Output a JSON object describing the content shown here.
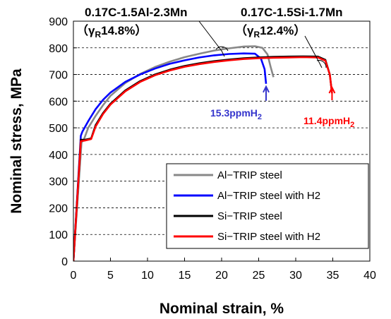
{
  "chart_data": {
    "type": "line",
    "xlabel": "Nominal strain, %",
    "ylabel": "Nominal stress, MPa",
    "xlim": [
      0,
      40
    ],
    "ylim": [
      0,
      900
    ],
    "xticks": [
      0,
      5,
      10,
      15,
      20,
      25,
      30,
      35,
      40
    ],
    "yticks": [
      0,
      100,
      200,
      300,
      400,
      500,
      600,
      700,
      800,
      900
    ],
    "grid": "horizontal dashed",
    "legend_position": "bottom-right",
    "series": [
      {
        "name": "Al−TRIP steel",
        "color": "#888888",
        "x": [
          0,
          1.1,
          1.4,
          2,
          3,
          4,
          5,
          7,
          9,
          11,
          13,
          15,
          17,
          19,
          21,
          23,
          24.5,
          25.5,
          26.2,
          26.6,
          27
        ],
        "y": [
          0,
          445,
          455,
          500,
          545,
          585,
          620,
          668,
          702,
          728,
          748,
          765,
          778,
          790,
          798,
          805,
          806,
          800,
          775,
          730,
          690
        ]
      },
      {
        "name": "Al−TRIP steel with H2",
        "color": "#0000ff",
        "x": [
          0,
          1,
          1.2,
          2,
          3,
          4,
          5,
          7,
          9,
          11,
          13,
          15,
          17,
          19,
          21,
          23,
          24.5,
          25.3,
          25.8,
          26
        ],
        "y": [
          0,
          470,
          485,
          525,
          570,
          605,
          632,
          672,
          700,
          722,
          740,
          753,
          764,
          772,
          777,
          779,
          778,
          760,
          720,
          665
        ]
      },
      {
        "name": "Si−TRIP steel",
        "color": "#000000",
        "x": [
          0,
          1,
          1.5,
          2.4,
          3,
          4,
          5,
          7,
          9,
          11,
          13,
          15,
          17,
          19,
          21,
          23,
          25,
          27,
          29,
          31,
          33,
          34,
          34.6,
          34.9
        ],
        "y": [
          0,
          455,
          455,
          460,
          510,
          555,
          590,
          640,
          675,
          700,
          718,
          732,
          742,
          750,
          756,
          761,
          764,
          766,
          767,
          768,
          767,
          755,
          700,
          630
        ]
      },
      {
        "name": "Si−TRIP steel with H2",
        "color": "#ff0000",
        "x": [
          0,
          1,
          1.5,
          2.4,
          3,
          4,
          5,
          7,
          9,
          11,
          13,
          15,
          17,
          19,
          21,
          23,
          25,
          27,
          29,
          31,
          33,
          34,
          34.6,
          34.9
        ],
        "y": [
          0,
          450,
          452,
          458,
          505,
          552,
          587,
          637,
          672,
          697,
          715,
          729,
          739,
          747,
          753,
          758,
          761,
          763,
          764,
          765,
          764,
          752,
          700,
          630
        ]
      }
    ],
    "annotations": {
      "al_title": "0.17C-1.5Al-2.3Mn",
      "al_gamma": "（γ",
      "al_gamma_sub": "R",
      "al_gamma_val": "14.8%）",
      "si_title": "0.17C-1.5Si-1.7Mn",
      "si_gamma": "（γ",
      "si_gamma_sub": "R",
      "si_gamma_val": "12.4%）",
      "h2_al_main": "15.3ppmH",
      "h2_al_sub": "2",
      "h2_si_main": "11.4ppmH",
      "h2_si_sub": "2",
      "h2_al_color": "#3333cc",
      "h2_si_color": "#ff0000",
      "h2_al_point": [
        26,
        665
      ],
      "h2_si_point": [
        34.9,
        630
      ]
    }
  }
}
